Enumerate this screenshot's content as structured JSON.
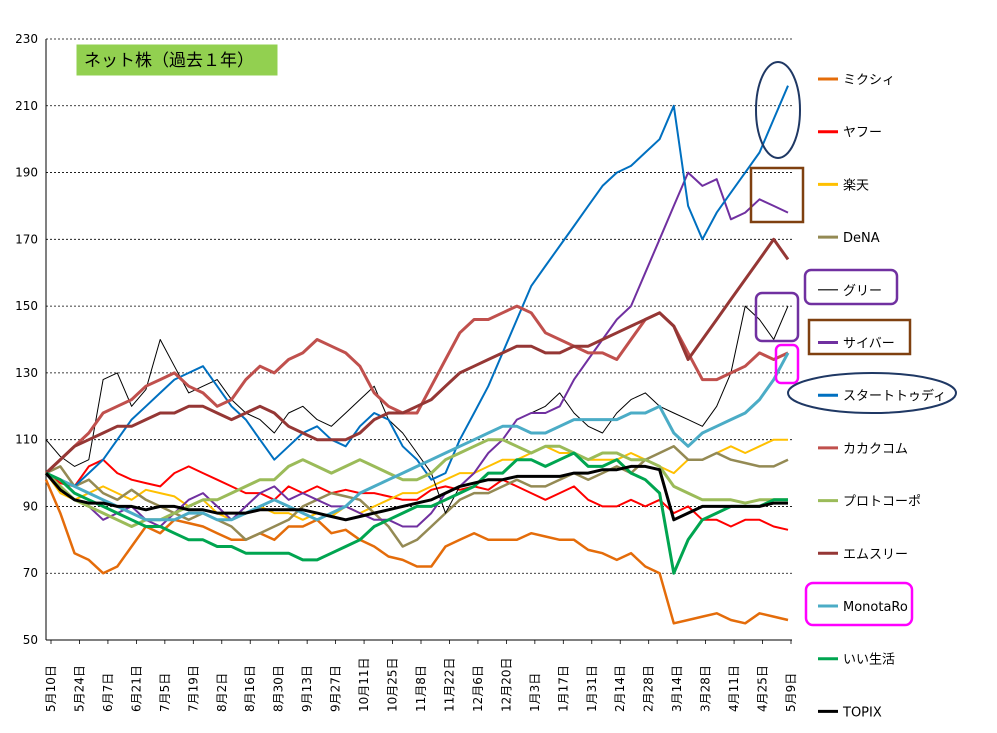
{
  "chart_data": {
    "type": "line",
    "title": "ネット株（過去１年）",
    "title_box_color": "#92d050",
    "ylim": [
      50,
      230
    ],
    "yticks": [
      50,
      70,
      90,
      110,
      130,
      150,
      170,
      190,
      210,
      230
    ],
    "grid": "horizontal-dashed",
    "xlabel": "",
    "ylabel": "",
    "x_tick_labels": [
      "5月10日",
      "5月24日",
      "6月7日",
      "6月21日",
      "7月5日",
      "7月19日",
      "8月2日",
      "8月16日",
      "8月30日",
      "9月13日",
      "9月27日",
      "10月11日",
      "10月25日",
      "11月8日",
      "11月22日",
      "12月6日",
      "12月20日",
      "1月3日",
      "1月17日",
      "1月31日",
      "2月14日",
      "2月28日",
      "3月14日",
      "3月28日",
      "4月11日",
      "4月25日",
      "5月9日"
    ],
    "series": [
      {
        "name": "ミクシィ",
        "color": "#e46c0a",
        "width": 2.5,
        "values": [
          98,
          88,
          76,
          74,
          70,
          72,
          78,
          84,
          82,
          86,
          85,
          84,
          82,
          80,
          80,
          82,
          80,
          84,
          84,
          86,
          82,
          83,
          80,
          78,
          75,
          74,
          72,
          72,
          78,
          80,
          82,
          80,
          80,
          80,
          82,
          81,
          80,
          80,
          77,
          76,
          74,
          76,
          72,
          70,
          55,
          56,
          57,
          58,
          56,
          55,
          58,
          57,
          56
        ]
      },
      {
        "name": "ヤフー",
        "color": "#ff0000",
        "width": 2,
        "values": [
          100,
          97,
          96,
          102,
          104,
          100,
          98,
          97,
          96,
          100,
          102,
          100,
          98,
          96,
          94,
          94,
          92,
          96,
          94,
          96,
          94,
          95,
          94,
          94,
          93,
          92,
          92,
          95,
          96,
          95,
          96,
          95,
          98,
          96,
          94,
          92,
          94,
          96,
          92,
          90,
          90,
          92,
          90,
          92,
          88,
          90,
          86,
          86,
          84,
          86,
          86,
          84,
          83
        ]
      },
      {
        "name": "楽天",
        "color": "#ffc000",
        "width": 2,
        "values": [
          100,
          94,
          92,
          94,
          96,
          94,
          92,
          95,
          94,
          93,
          90,
          92,
          88,
          86,
          88,
          90,
          88,
          88,
          86,
          88,
          87,
          90,
          88,
          90,
          92,
          94,
          94,
          96,
          98,
          100,
          100,
          102,
          104,
          104,
          106,
          108,
          106,
          106,
          104,
          104,
          104,
          106,
          104,
          102,
          100,
          104,
          104,
          106,
          108,
          106,
          108,
          110,
          110
        ]
      },
      {
        "name": "DeNA",
        "color": "#948a54",
        "width": 2.5,
        "values": [
          100,
          102,
          96,
          98,
          94,
          92,
          95,
          92,
          90,
          88,
          86,
          88,
          86,
          84,
          80,
          82,
          84,
          86,
          90,
          92,
          94,
          93,
          92,
          88,
          84,
          78,
          80,
          84,
          88,
          92,
          94,
          94,
          96,
          98,
          96,
          96,
          98,
          100,
          98,
          100,
          102,
          100,
          104,
          106,
          108,
          104,
          104,
          106,
          104,
          103,
          102,
          102,
          104
        ]
      },
      {
        "name": "グリー",
        "color": "#000000",
        "width": 1,
        "values": [
          110,
          105,
          102,
          104,
          128,
          130,
          120,
          125,
          140,
          132,
          124,
          126,
          128,
          122,
          118,
          116,
          112,
          118,
          120,
          116,
          114,
          118,
          122,
          126,
          116,
          112,
          106,
          100,
          88,
          96,
          100,
          106,
          110,
          116,
          118,
          120,
          124,
          118,
          114,
          112,
          118,
          122,
          124,
          120,
          118,
          116,
          114,
          120,
          130,
          150,
          146,
          140,
          150
        ]
      },
      {
        "name": "サイバー",
        "color": "#7030a0",
        "width": 2,
        "values": [
          100,
          96,
          92,
          90,
          86,
          88,
          90,
          86,
          84,
          88,
          92,
          94,
          90,
          86,
          90,
          94,
          96,
          92,
          94,
          92,
          90,
          90,
          88,
          86,
          86,
          84,
          84,
          88,
          94,
          96,
          100,
          106,
          110,
          116,
          118,
          118,
          120,
          128,
          134,
          140,
          146,
          150,
          160,
          170,
          180,
          190,
          186,
          188,
          176,
          178,
          182,
          180,
          178
        ]
      },
      {
        "name": "スタートトゥディ",
        "color": "#0070c0",
        "width": 2,
        "values": [
          100,
          98,
          96,
          100,
          104,
          110,
          116,
          120,
          124,
          128,
          130,
          132,
          126,
          120,
          116,
          110,
          104,
          108,
          112,
          114,
          110,
          108,
          114,
          118,
          116,
          108,
          104,
          98,
          100,
          110,
          118,
          126,
          136,
          146,
          156,
          162,
          168,
          174,
          180,
          186,
          190,
          192,
          196,
          200,
          210,
          180,
          170,
          178,
          184,
          190,
          196,
          206,
          216
        ]
      },
      {
        "name": "カカクコム",
        "color": "#c0504d",
        "width": 3,
        "values": [
          100,
          104,
          108,
          112,
          118,
          120,
          122,
          126,
          128,
          130,
          126,
          124,
          120,
          122,
          128,
          132,
          130,
          134,
          136,
          140,
          138,
          136,
          132,
          124,
          120,
          118,
          118,
          126,
          134,
          142,
          146,
          146,
          148,
          150,
          148,
          142,
          140,
          138,
          136,
          136,
          134,
          140,
          146,
          148,
          144,
          136,
          128,
          128,
          130,
          132,
          136,
          134,
          136
        ]
      },
      {
        "name": "プロトコーポ",
        "color": "#9bbb59",
        "width": 3,
        "values": [
          100,
          96,
          92,
          90,
          88,
          86,
          84,
          86,
          86,
          88,
          90,
          92,
          92,
          94,
          96,
          98,
          98,
          102,
          104,
          102,
          100,
          102,
          104,
          102,
          100,
          98,
          98,
          100,
          104,
          106,
          108,
          110,
          110,
          108,
          106,
          108,
          108,
          106,
          104,
          106,
          106,
          104,
          104,
          102,
          96,
          94,
          92,
          92,
          92,
          91,
          92,
          92,
          92
        ]
      },
      {
        "name": "エムスリー",
        "color": "#953735",
        "width": 3,
        "values": [
          100,
          104,
          108,
          110,
          112,
          114,
          114,
          116,
          118,
          118,
          120,
          120,
          118,
          116,
          118,
          120,
          118,
          114,
          112,
          110,
          110,
          110,
          112,
          116,
          118,
          118,
          120,
          122,
          126,
          130,
          132,
          134,
          136,
          138,
          138,
          136,
          136,
          138,
          138,
          140,
          142,
          144,
          146,
          148,
          144,
          134,
          140,
          146,
          152,
          158,
          164,
          170,
          164
        ]
      },
      {
        "name": "MonotaRo",
        "color": "#4bacc6",
        "width": 3,
        "values": [
          100,
          98,
          96,
          94,
          92,
          90,
          88,
          86,
          86,
          86,
          88,
          88,
          86,
          86,
          88,
          90,
          92,
          90,
          88,
          86,
          88,
          90,
          94,
          96,
          98,
          100,
          102,
          104,
          106,
          108,
          110,
          112,
          114,
          114,
          112,
          112,
          114,
          116,
          116,
          116,
          116,
          118,
          118,
          120,
          112,
          108,
          112,
          114,
          116,
          118,
          122,
          128,
          136
        ]
      },
      {
        "name": "いい生活",
        "color": "#00a550",
        "width": 3,
        "values": [
          100,
          98,
          94,
          92,
          90,
          88,
          86,
          84,
          84,
          82,
          80,
          80,
          78,
          78,
          76,
          76,
          76,
          76,
          74,
          74,
          76,
          78,
          80,
          84,
          86,
          88,
          90,
          90,
          92,
          94,
          96,
          100,
          100,
          104,
          104,
          102,
          104,
          106,
          102,
          102,
          104,
          100,
          98,
          94,
          70,
          80,
          86,
          88,
          90,
          90,
          90,
          92,
          92
        ]
      },
      {
        "name": "TOPIX",
        "color": "#000000",
        "width": 3,
        "values": [
          100,
          95,
          92,
          91,
          91,
          90,
          90,
          89,
          90,
          90,
          89,
          89,
          88,
          88,
          88,
          89,
          89,
          89,
          89,
          88,
          87,
          86,
          87,
          88,
          89,
          90,
          91,
          92,
          94,
          96,
          97,
          98,
          98,
          99,
          99,
          99,
          99,
          100,
          100,
          101,
          101,
          102,
          102,
          101,
          86,
          88,
          90,
          90,
          90,
          90,
          90,
          91,
          91
        ]
      }
    ]
  }
}
